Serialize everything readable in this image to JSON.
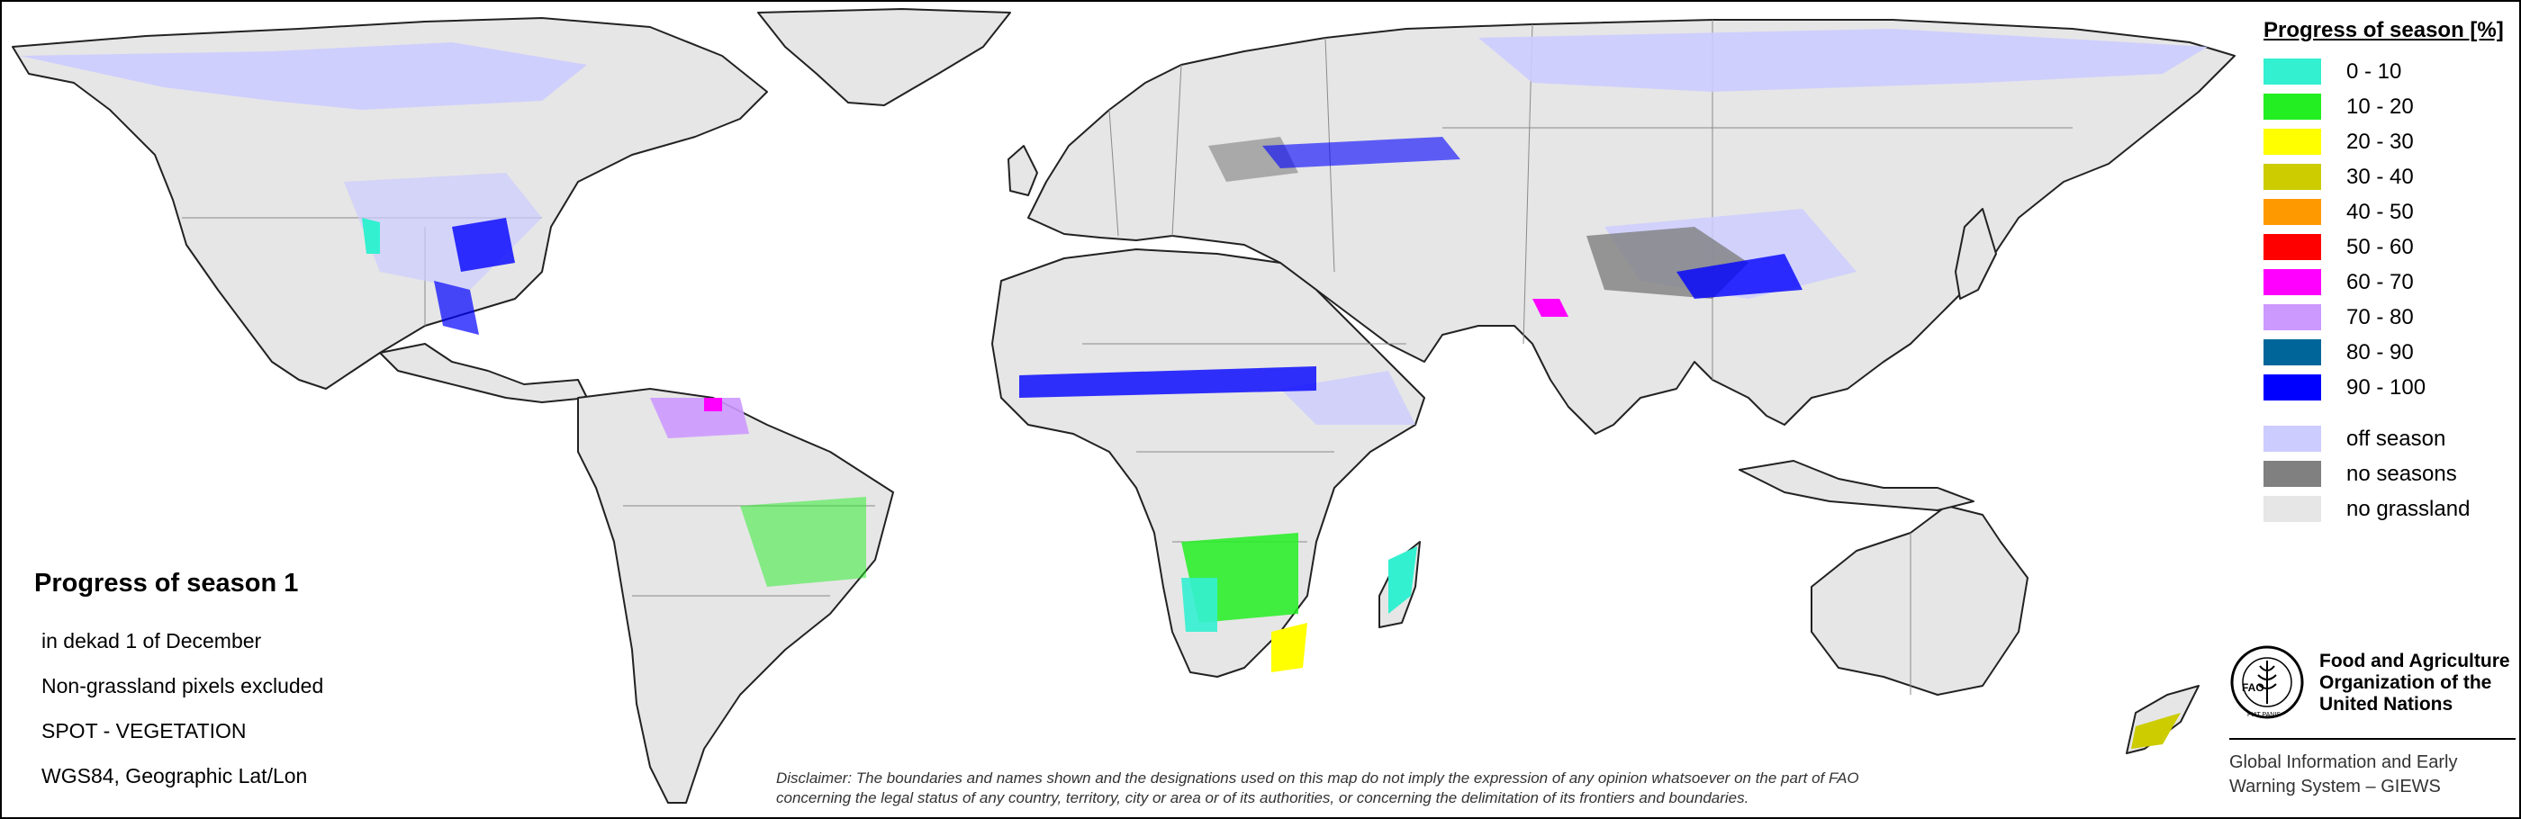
{
  "map_title": "Progress of season 1",
  "details": [
    "in dekad 1 of December",
    "Non-grassland pixels excluded",
    "SPOT - VEGETATION",
    "WGS84, Geographic Lat/Lon"
  ],
  "legend": {
    "title": "Progress of season [%]",
    "classes": [
      {
        "label": "0 - 10",
        "color": "#33f0d0"
      },
      {
        "label": "10 - 20",
        "color": "#22ee22"
      },
      {
        "label": "20 - 30",
        "color": "#ffff00"
      },
      {
        "label": "30 - 40",
        "color": "#cccc00"
      },
      {
        "label": "40 - 50",
        "color": "#ff9900"
      },
      {
        "label": "50 - 60",
        "color": "#ff0000"
      },
      {
        "label": "60 - 70",
        "color": "#ff00ff"
      },
      {
        "label": "70 - 80",
        "color": "#cc99ff"
      },
      {
        "label": "80 - 90",
        "color": "#006699"
      },
      {
        "label": "90 - 100",
        "color": "#0000ff"
      }
    ],
    "extra_classes": [
      {
        "label": "off season",
        "color": "#ccccff"
      },
      {
        "label": "no seasons",
        "color": "#808080"
      },
      {
        "label": "no grassland",
        "color": "#e6e6e6"
      }
    ]
  },
  "disclaimer": [
    "Disclaimer: The boundaries and names shown and the designations used on this map do not imply the expression of any opinion whatsoever on the part of FAO",
    "concerning the legal status of any country, territory, city or area or of its authorities, or concerning the delimitation of its frontiers and boundaries."
  ],
  "org": {
    "logo_text": "FAO",
    "logo_motto": "FIAT PANIS",
    "name_lines": [
      "Food and Agriculture",
      "Organization of the",
      "United Nations"
    ],
    "program_lines": [
      "Global Information and Early",
      "Warning System – GIEWS"
    ]
  },
  "map_colors": {
    "ocean": "#ffffff",
    "land": "#e6e6e6",
    "border": "#8a8a8a",
    "coast": "#222222"
  }
}
